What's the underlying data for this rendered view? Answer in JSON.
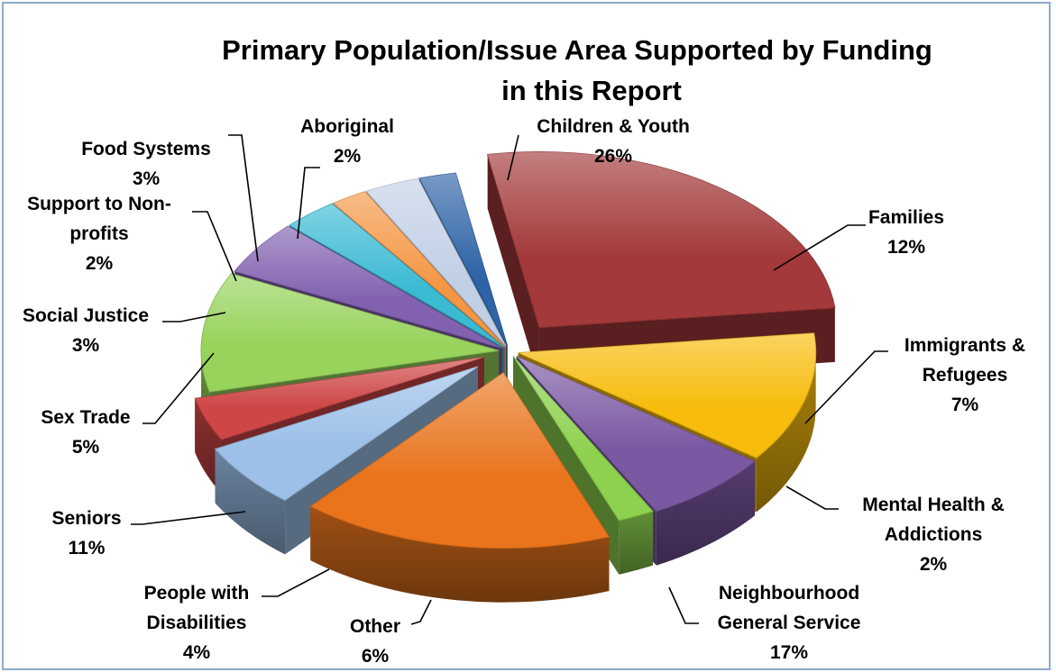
{
  "chart_data": {
    "type": "pie",
    "title_line1": "Primary Population/Issue Area Supported by Funding",
    "title_line2": "in this Report",
    "slices": [
      {
        "label": "Children & Youth",
        "display_lines": [
          "Children & Youth"
        ],
        "percent_label": "26%",
        "value": 26,
        "color": "#A3393A"
      },
      {
        "label": "Families",
        "display_lines": [
          "Families"
        ],
        "percent_label": "12%",
        "value": 12,
        "color": "#F7BC0C"
      },
      {
        "label": "Immigrants & Refugees",
        "display_lines": [
          "Immigrants &",
          "Refugees"
        ],
        "percent_label": "7%",
        "value": 7,
        "color": "#7A58A2"
      },
      {
        "label": "Mental Health & Addictions",
        "display_lines": [
          "Mental Health &",
          "Addictions"
        ],
        "percent_label": "2%",
        "value": 2,
        "color": "#8DD14F"
      },
      {
        "label": "Neighbourhood General Service",
        "display_lines": [
          "Neighbourhood",
          "General Service"
        ],
        "percent_label": "17%",
        "value": 17,
        "color": "#E9741C"
      },
      {
        "label": "Other",
        "display_lines": [
          "Other"
        ],
        "percent_label": "6%",
        "value": 6,
        "color": "#9CC0E8"
      },
      {
        "label": "People with Disabilities",
        "display_lines": [
          "People with",
          "Disabilities"
        ],
        "percent_label": "4%",
        "value": 4,
        "color": "#CE4746"
      },
      {
        "label": "Seniors",
        "display_lines": [
          "Seniors"
        ],
        "percent_label": "11%",
        "value": 11,
        "color": "#98D35C"
      },
      {
        "label": "Sex Trade",
        "display_lines": [
          "Sex Trade"
        ],
        "percent_label": "5%",
        "value": 5,
        "color": "#8262B0"
      },
      {
        "label": "Social Justice",
        "display_lines": [
          "Social Justice"
        ],
        "percent_label": "3%",
        "value": 3,
        "color": "#3BBAD4"
      },
      {
        "label": "Support to Non-profits",
        "display_lines": [
          "Support to Non-",
          "profits"
        ],
        "percent_label": "2%",
        "value": 2,
        "color": "#F49745"
      },
      {
        "label": "Food Systems",
        "display_lines": [
          "Food Systems"
        ],
        "percent_label": "3%",
        "value": 3,
        "color": "#C2D0E6"
      },
      {
        "label": "Aboriginal",
        "display_lines": [
          "Aboriginal"
        ],
        "percent_label": "2%",
        "value": 2,
        "color": "#2E63A6"
      }
    ]
  }
}
